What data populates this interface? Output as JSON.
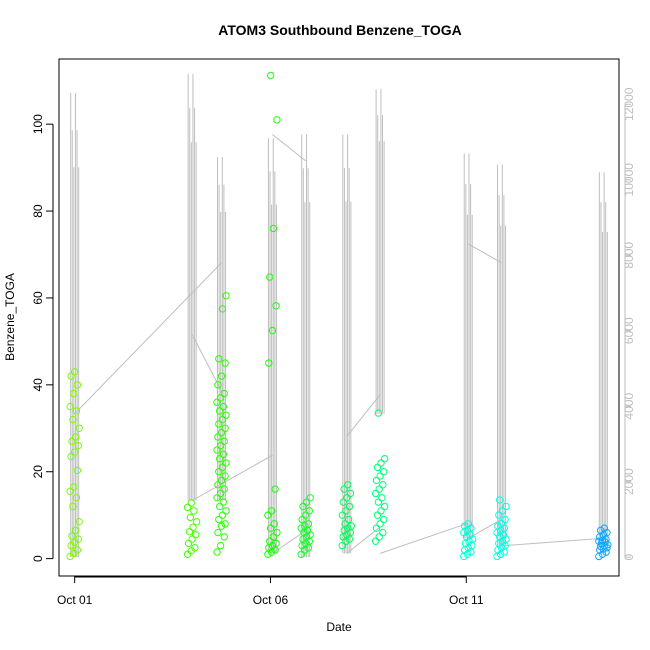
{
  "chart_data": {
    "type": "scatter",
    "title": "ATOM3 Southbound Benzene_TOGA",
    "xlabel": "Date",
    "ylabel": "Benzene_TOGA",
    "x_ticks": [
      "Oct 01",
      "Oct 06",
      "Oct 11"
    ],
    "xlim_days": [
      0.6,
      14.9
    ],
    "ylim": [
      -4,
      115
    ],
    "y_ticks": [
      0,
      20,
      40,
      60,
      80,
      100
    ],
    "y2_ticks": [
      0,
      2000,
      4000,
      6000,
      8000,
      10000,
      12000
    ],
    "y2lim": [
      -500,
      13200
    ],
    "grid": false,
    "series": [
      {
        "kind": "points",
        "groups": [
          {
            "day": 1.0,
            "color": "#7cfc00",
            "values": [
              0.5,
              1.2,
              2.0,
              3.0,
              3.8,
              4.5,
              5.2,
              6.5,
              8.5,
              12,
              14,
              15.5,
              16.5,
              20.3,
              23.5,
              24.5,
              26,
              27,
              28,
              30,
              32,
              34,
              35,
              38,
              40,
              42,
              43
            ]
          },
          {
            "day": 4.0,
            "color": "#46ff00",
            "values": [
              1,
              1.8,
              2.5,
              3.5,
              4.5,
              5.5,
              6.2,
              7.2,
              8.5,
              9.5,
              11,
              11.8,
              12.8
            ]
          },
          {
            "day": 4.75,
            "color": "#2bff00",
            "values": [
              1.5,
              3,
              5,
              6,
              7.5,
              8,
              9,
              10,
              11,
              12,
              13,
              14,
              15,
              16,
              17,
              18,
              19,
              20,
              21,
              22,
              23,
              24,
              25,
              26,
              27,
              28,
              29,
              30,
              31,
              32,
              33,
              34,
              35,
              36,
              37,
              38,
              40,
              42,
              45,
              46,
              57.5,
              60.5
            ]
          },
          {
            "day": 6.05,
            "color": "#19ff06",
            "values": [
              1,
              1.5,
              2,
              2.5,
              3,
              3.5,
              4,
              5,
              6,
              7,
              8,
              10,
              11,
              16,
              45,
              52.5,
              58.2,
              64.8,
              76,
              101,
              111.2
            ]
          },
          {
            "day": 6.9,
            "color": "#14ff2a",
            "values": [
              1,
              2,
              2.5,
              3,
              3.5,
              4,
              4.5,
              5,
              5.5,
              6,
              6.5,
              7,
              7.5,
              8,
              9,
              10,
              11,
              12,
              13,
              14
            ]
          },
          {
            "day": 7.95,
            "color": "#00ff5a",
            "values": [
              3,
              4,
              4.5,
              5,
              5.5,
              6,
              6.5,
              7,
              7.5,
              8,
              9,
              10,
              11,
              12,
              13,
              14,
              15,
              16,
              17
            ]
          },
          {
            "day": 8.8,
            "color": "#00ff7a",
            "values": [
              4,
              5,
              6,
              7,
              8,
              9,
              10,
              11,
              12,
              13,
              14,
              15,
              16,
              17,
              18,
              19,
              20,
              21,
              22,
              23,
              33.5
            ]
          },
          {
            "day": 11.05,
            "color": "#00ffd8",
            "values": [
              0.5,
              1,
              1.5,
              2,
              2.5,
              3,
              3.5,
              4,
              4.5,
              5,
              5.5,
              6,
              6.5,
              7,
              7.5,
              8
            ]
          },
          {
            "day": 11.9,
            "color": "#00ffe8",
            "values": [
              0.5,
              1,
              1.5,
              2,
              2.5,
              3,
              3.5,
              4,
              4.5,
              5,
              5.5,
              6,
              6.5,
              7,
              7.5,
              8,
              9,
              10,
              11,
              12,
              13.5
            ]
          },
          {
            "day": 14.5,
            "color": "#0ca6ff",
            "values": [
              0.5,
              1,
              1.5,
              2,
              2.2,
              2.5,
              2.8,
              3,
              3.2,
              3.5,
              3.8,
              4,
              4.2,
              4.5,
              5,
              5.5,
              6,
              6.5,
              7
            ]
          }
        ]
      },
      {
        "kind": "secondary-line",
        "color": "#bebebe",
        "axis": "right",
        "spikes": [
          {
            "day": 1.0,
            "low": 0,
            "high": 12300
          },
          {
            "day": 4.0,
            "low": 1500,
            "high": 12800
          },
          {
            "day": 4.75,
            "low": 1500,
            "high": 10600
          },
          {
            "day": 6.05,
            "low": 100,
            "high": 11100
          },
          {
            "day": 6.9,
            "low": 0,
            "high": 11200
          },
          {
            "day": 7.95,
            "low": 100,
            "high": 11200
          },
          {
            "day": 8.8,
            "low": 3800,
            "high": 12400
          },
          {
            "day": 11.05,
            "low": 500,
            "high": 10700
          },
          {
            "day": 11.9,
            "low": 300,
            "high": 10400
          },
          {
            "day": 14.5,
            "low": 300,
            "high": 10200
          }
        ],
        "connectors": [
          {
            "x": [
              1.0,
              4.75
            ],
            "y": [
              3800,
              7800
            ]
          },
          {
            "x": [
              4.0,
              4.75
            ],
            "y": [
              5900,
              4400
            ]
          },
          {
            "x": [
              4.0,
              6.05
            ],
            "y": [
              1500,
              2700
            ]
          },
          {
            "x": [
              6.05,
              6.9
            ],
            "y": [
              11200,
              10500
            ]
          },
          {
            "x": [
              6.05,
              6.9
            ],
            "y": [
              100,
              700
            ]
          },
          {
            "x": [
              7.95,
              8.8
            ],
            "y": [
              3200,
              4300
            ]
          },
          {
            "x": [
              7.95,
              8.8
            ],
            "y": [
              100,
              800
            ]
          },
          {
            "x": [
              8.8,
              11.05
            ],
            "y": [
              100,
              900
            ]
          },
          {
            "x": [
              11.05,
              11.9
            ],
            "y": [
              8300,
              7800
            ]
          },
          {
            "x": [
              11.05,
              11.9
            ],
            "y": [
              500,
              1000
            ]
          },
          {
            "x": [
              11.9,
              14.5
            ],
            "y": [
              300,
              500
            ]
          }
        ]
      }
    ]
  }
}
